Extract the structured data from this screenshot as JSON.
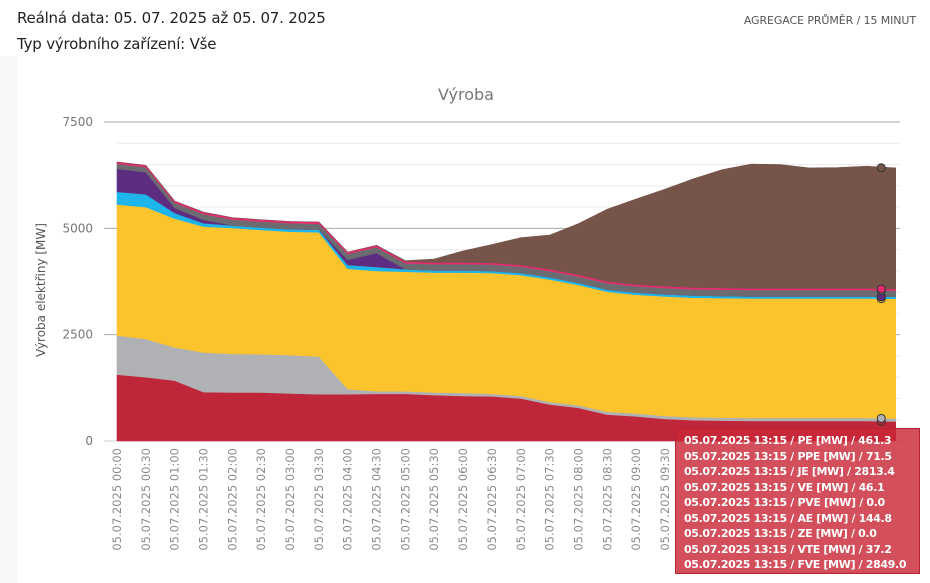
{
  "header": {
    "date_range": "Reálná data: 05. 07. 2025 až 05. 07. 2025",
    "device_type": "Typ výrobního zařízení: Vše",
    "aggregation": "AGREGACE PRŮMĚR / 15 MINUT"
  },
  "chart_data": {
    "type": "area",
    "stacked": true,
    "title": "Výroba",
    "xlabel": "",
    "ylabel": "Výroba elektřiny [MW]",
    "ylim": [
      0,
      7500
    ],
    "yticks": [
      0,
      2500,
      5000,
      7500
    ],
    "grid": true,
    "x": [
      "05.07.2025 00:00",
      "05.07.2025 00:30",
      "05.07.2025 01:00",
      "05.07.2025 01:30",
      "05.07.2025 02:00",
      "05.07.2025 02:30",
      "05.07.2025 03:00",
      "05.07.2025 03:30",
      "05.07.2025 04:00",
      "05.07.2025 04:30",
      "05.07.2025 05:00",
      "05.07.2025 05:30",
      "05.07.2025 06:00",
      "05.07.2025 06:30",
      "05.07.2025 07:00",
      "05.07.2025 07:30",
      "05.07.2025 08:00",
      "05.07.2025 08:30",
      "05.07.2025 09:00",
      "05.07.2025 09:30",
      "05.07.2025 10:00",
      "05.07.2025 10:30",
      "05.07.2025 11:00",
      "05.07.2025 11:30",
      "05.07.2025 12:00",
      "05.07.2025 12:30",
      "05.07.2025 13:00",
      "05.07.2025 13:30"
    ],
    "xticks_visible": [
      "05.07.2025 00:00",
      "05.07.2025 00:30",
      "05.07.2025 01:00",
      "05.07.2025 01:30",
      "05.07.2025 02:00",
      "05.07.2025 02:30",
      "05.07.2025 03:00",
      "05.07.2025 03:30",
      "05.07.2025 04:00",
      "05.07.2025 04:30",
      "05.07.2025 05:00",
      "05.07.2025 05:30",
      "05.07.2025 06:00",
      "05.07.2025 06:30",
      "05.07.2025 07:00",
      "05.07.2025 07:30",
      "05.07.2025 08:00",
      "05.07.2025 08:30",
      "05.07.2025 09:00",
      "05.07.2025 09:30"
    ],
    "series": [
      {
        "name": "PE",
        "color": "#c0263a",
        "values": [
          1560,
          1500,
          1420,
          1150,
          1140,
          1140,
          1120,
          1100,
          1100,
          1110,
          1110,
          1080,
          1060,
          1050,
          1000,
          860,
          780,
          620,
          580,
          520,
          490,
          480,
          470,
          470,
          470,
          470,
          470,
          460
        ]
      },
      {
        "name": "PPE",
        "color": "#b0b1b5",
        "values": [
          920,
          900,
          780,
          930,
          910,
          900,
          900,
          890,
          120,
          60,
          60,
          60,
          70,
          60,
          60,
          60,
          60,
          70,
          70,
          70,
          70,
          70,
          70,
          70,
          70,
          70,
          70,
          72
        ]
      },
      {
        "name": "JE",
        "color": "#fbc42d",
        "values": [
          3080,
          3100,
          3030,
          2960,
          2960,
          2920,
          2900,
          2920,
          2830,
          2830,
          2810,
          2820,
          2830,
          2840,
          2840,
          2880,
          2830,
          2820,
          2790,
          2810,
          2810,
          2810,
          2810,
          2810,
          2810,
          2810,
          2810,
          2813
        ]
      },
      {
        "name": "VE",
        "color": "#1eb5ea",
        "values": [
          300,
          300,
          130,
          80,
          60,
          60,
          60,
          60,
          90,
          90,
          60,
          50,
          50,
          50,
          50,
          50,
          50,
          50,
          50,
          50,
          50,
          50,
          50,
          50,
          50,
          50,
          50,
          46
        ]
      },
      {
        "name": "PVE",
        "color": "#5e2d82",
        "values": [
          540,
          520,
          120,
          80,
          0,
          0,
          0,
          0,
          120,
          330,
          0,
          0,
          0,
          0,
          0,
          0,
          0,
          0,
          0,
          0,
          0,
          0,
          0,
          0,
          0,
          0,
          0,
          0
        ]
      },
      {
        "name": "AE",
        "color": "#6b6b70",
        "values": [
          120,
          120,
          120,
          140,
          140,
          140,
          140,
          140,
          140,
          140,
          140,
          150,
          150,
          150,
          150,
          150,
          150,
          150,
          150,
          150,
          150,
          150,
          150,
          150,
          150,
          150,
          150,
          145
        ]
      },
      {
        "name": "ZE",
        "color": "#8a8a8a",
        "values": [
          0,
          0,
          0,
          0,
          0,
          0,
          0,
          0,
          0,
          0,
          0,
          0,
          0,
          0,
          0,
          0,
          0,
          0,
          0,
          0,
          0,
          0,
          0,
          0,
          0,
          0,
          0,
          0
        ]
      },
      {
        "name": "VTE",
        "color": "#e52a6f",
        "values": [
          40,
          40,
          40,
          40,
          40,
          40,
          40,
          40,
          40,
          40,
          40,
          40,
          40,
          40,
          40,
          40,
          40,
          40,
          40,
          40,
          40,
          40,
          40,
          40,
          40,
          40,
          40,
          37
        ]
      },
      {
        "name": "FVE",
        "color": "#76544a",
        "values": [
          0,
          0,
          0,
          0,
          0,
          0,
          0,
          0,
          0,
          0,
          20,
          80,
          270,
          430,
          640,
          800,
          1200,
          1700,
          2010,
          2280,
          2560,
          2780,
          2920,
          2910,
          2830,
          2840,
          2870,
          2849
        ]
      }
    ],
    "highlight": {
      "x": "05.07.2025 13:15"
    },
    "tooltip_lines": [
      "05.07.2025 13:15 / PE [MW] / 461.3",
      "05.07.2025 13:15 / PPE [MW] / 71.5",
      "05.07.2025 13:15 / JE [MW] / 2813.4",
      "05.07.2025 13:15 / VE [MW] / 46.1",
      "05.07.2025 13:15 / PVE [MW] / 0.0",
      "05.07.2025 13:15 / AE [MW] / 144.8",
      "05.07.2025 13:15 / ZE [MW] / 0.0",
      "05.07.2025 13:15 / VTE [MW] / 37.2",
      "05.07.2025 13:15 / FVE [MW] / 2849.0"
    ],
    "tooltip_values": {
      "PE": 461.3,
      "PPE": 71.5,
      "JE": 2813.4,
      "VE": 46.1,
      "PVE": 0.0,
      "AE": 144.8,
      "ZE": 0.0,
      "VTE": 37.2,
      "FVE": 2849.0
    }
  }
}
